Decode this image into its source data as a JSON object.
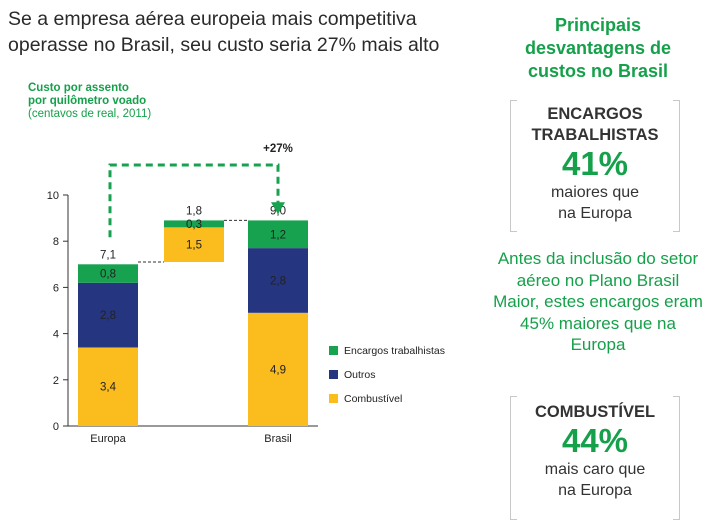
{
  "headline": "Se a empresa aérea europeia mais competitiva operasse no Brasil, seu custo seria 27% mais alto",
  "chart_data": {
    "type": "bar",
    "subtype": "stacked-waterfall",
    "caption_line1": "Custo por assento",
    "caption_line2": "por quilômetro voado",
    "caption_unit": "(centavos de real, 2011)",
    "ylim": [
      0,
      10
    ],
    "yticks": [
      "0",
      "2",
      "4",
      "6",
      "8",
      "10"
    ],
    "categories": [
      "Europa",
      "",
      "Brasil"
    ],
    "series": [
      {
        "name": "Combustível",
        "color": "#fbbc1d",
        "values": [
          3.4,
          1.5,
          4.9
        ],
        "labels": [
          "3,4",
          "1,5",
          "4,9"
        ]
      },
      {
        "name": "Outros",
        "color": "#263580",
        "values": [
          2.8,
          0,
          2.8
        ],
        "labels": [
          "2,8",
          "",
          "2,8"
        ]
      },
      {
        "name": "Encargos trabalhistas",
        "color": "#17a24f",
        "values": [
          0.8,
          0.3,
          1.2
        ],
        "labels": [
          "0,8",
          "0,3",
          "1,2"
        ]
      }
    ],
    "bases": [
      0,
      7.1,
      0
    ],
    "totals": [
      "7,1",
      "1,8",
      "9,0"
    ],
    "annotation": "+27%",
    "legend_position": "right"
  },
  "sidebar": {
    "title": "Principais desvantagens de custos no Brasil",
    "box1": {
      "title_line1": "ENCARGOS",
      "title_line2": "TRABALHISTAS",
      "value": "41%",
      "sub_line1": "maiores que",
      "sub_line2": "na Europa"
    },
    "note": "Antes da inclusão do setor aéreo no Plano Brasil Maior, estes encargos eram 45% maiores que na Europa",
    "box2": {
      "title": "COMBUSTÍVEL",
      "value": "44%",
      "sub_line1": "mais caro que",
      "sub_line2": "na Europa"
    }
  }
}
